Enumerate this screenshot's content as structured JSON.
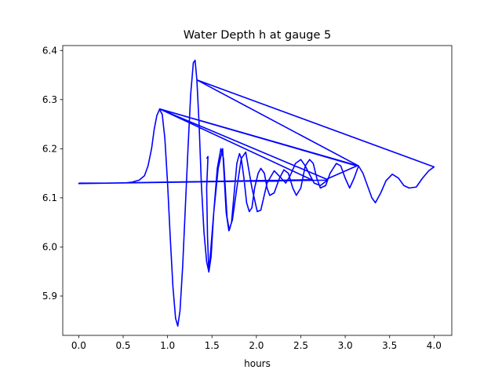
{
  "chart_data": {
    "type": "line",
    "title": "Water Depth h at gauge 5",
    "xlabel": "hours",
    "ylabel": "",
    "xlim": [
      -0.18,
      4.2
    ],
    "ylim": [
      5.82,
      6.41
    ],
    "x_ticks": [
      0.0,
      0.5,
      1.0,
      1.5,
      2.0,
      2.5,
      3.0,
      3.5,
      4.0
    ],
    "x_tick_labels": [
      "0.0",
      "0.5",
      "1.0",
      "1.5",
      "2.0",
      "2.5",
      "3.0",
      "3.5",
      "4.0"
    ],
    "y_ticks": [
      5.9,
      6.0,
      6.1,
      6.2,
      6.3,
      6.4
    ],
    "y_tick_labels": [
      "5.9",
      "6.0",
      "6.1",
      "6.2",
      "6.3",
      "6.4"
    ],
    "grid": false,
    "legend": "none",
    "color": "#0000ff",
    "series": [
      {
        "points": [
          [
            0.0,
            6.13
          ],
          [
            0.3,
            6.13
          ],
          [
            0.5,
            6.13
          ],
          [
            0.6,
            6.132
          ],
          [
            0.68,
            6.136
          ],
          [
            0.74,
            6.145
          ],
          [
            0.78,
            6.165
          ],
          [
            0.82,
            6.2
          ],
          [
            0.85,
            6.24
          ],
          [
            0.88,
            6.268
          ],
          [
            0.91,
            6.28
          ],
          [
            0.94,
            6.27
          ],
          [
            0.97,
            6.22
          ],
          [
            1.0,
            6.13
          ],
          [
            1.03,
            6.02
          ],
          [
            1.06,
            5.92
          ],
          [
            1.09,
            5.855
          ],
          [
            1.115,
            5.839
          ],
          [
            1.14,
            5.87
          ],
          [
            1.17,
            5.96
          ],
          [
            1.2,
            6.08
          ],
          [
            1.23,
            6.2
          ],
          [
            1.26,
            6.31
          ],
          [
            1.29,
            6.375
          ],
          [
            1.31,
            6.38
          ],
          [
            1.33,
            6.34
          ],
          [
            1.355,
            6.25
          ],
          [
            1.38,
            6.13
          ],
          [
            1.41,
            6.03
          ],
          [
            1.44,
            5.97
          ],
          [
            1.465,
            5.949
          ],
          [
            1.49,
            5.98
          ],
          [
            1.52,
            6.07
          ],
          [
            1.56,
            6.16
          ],
          [
            1.6,
            6.2
          ],
          [
            1.63,
            6.18
          ],
          [
            1.65,
            6.12
          ],
          [
            1.67,
            6.06
          ],
          [
            1.695,
            6.034
          ],
          [
            1.72,
            6.05
          ],
          [
            1.75,
            6.11
          ],
          [
            1.78,
            6.17
          ],
          [
            1.81,
            6.19
          ],
          [
            1.83,
            6.18
          ],
          [
            1.86,
            6.14
          ],
          [
            1.89,
            6.09
          ],
          [
            1.92,
            6.072
          ],
          [
            1.95,
            6.08
          ],
          [
            1.98,
            6.12
          ],
          [
            2.02,
            6.15
          ],
          [
            2.05,
            6.16
          ],
          [
            2.09,
            6.15
          ],
          [
            2.12,
            6.12
          ],
          [
            2.15,
            6.105
          ],
          [
            2.2,
            6.11
          ],
          [
            2.26,
            6.14
          ],
          [
            2.31,
            6.157
          ],
          [
            2.36,
            6.15
          ],
          [
            2.41,
            6.12
          ],
          [
            2.45,
            6.105
          ],
          [
            2.5,
            6.12
          ],
          [
            2.55,
            6.165
          ],
          [
            2.6,
            6.178
          ],
          [
            2.64,
            6.17
          ],
          [
            2.68,
            6.14
          ],
          [
            2.72,
            6.12
          ],
          [
            2.78,
            6.125
          ],
          [
            2.83,
            6.15
          ],
          [
            2.9,
            6.17
          ],
          [
            2.95,
            6.165
          ],
          [
            3.0,
            6.14
          ],
          [
            3.05,
            6.12
          ],
          [
            3.1,
            6.14
          ],
          [
            3.15,
            6.165
          ],
          [
            3.2,
            6.15
          ],
          [
            3.26,
            6.12
          ],
          [
            3.3,
            6.1
          ],
          [
            3.34,
            6.09
          ],
          [
            3.4,
            6.11
          ],
          [
            3.46,
            6.135
          ],
          [
            3.53,
            6.148
          ],
          [
            3.6,
            6.14
          ],
          [
            3.66,
            6.125
          ],
          [
            3.72,
            6.12
          ],
          [
            3.8,
            6.122
          ],
          [
            3.87,
            6.14
          ],
          [
            3.94,
            6.155
          ],
          [
            4.0,
            6.163
          ],
          [
            1.33,
            6.34
          ],
          [
            3.15,
            6.165
          ],
          [
            0.91,
            6.281
          ],
          [
            3.13,
            6.165
          ],
          [
            2.79,
            6.138
          ],
          [
            0.91,
            6.281
          ],
          [
            2.62,
            6.137
          ],
          [
            0.0,
            6.129
          ],
          [
            2.8,
            6.136
          ],
          [
            2.72,
            6.125
          ],
          [
            2.65,
            6.13
          ],
          [
            2.55,
            6.165
          ],
          [
            2.5,
            6.178
          ],
          [
            2.44,
            6.17
          ],
          [
            2.38,
            6.145
          ],
          [
            2.33,
            6.13
          ],
          [
            2.28,
            6.14
          ],
          [
            2.2,
            6.155
          ],
          [
            2.12,
            6.13
          ],
          [
            2.05,
            6.075
          ],
          [
            2.01,
            6.072
          ],
          [
            1.95,
            6.12
          ],
          [
            1.88,
            6.193
          ],
          [
            1.83,
            6.18
          ],
          [
            1.78,
            6.12
          ],
          [
            1.73,
            6.055
          ],
          [
            1.69,
            6.033
          ],
          [
            1.66,
            6.07
          ],
          [
            1.62,
            6.2
          ],
          [
            1.57,
            6.16
          ],
          [
            1.52,
            6.07
          ],
          [
            1.48,
            5.98
          ],
          [
            1.465,
            5.949
          ],
          [
            1.45,
            6.02
          ],
          [
            1.44,
            6.12
          ],
          [
            1.455,
            6.184
          ],
          [
            1.44,
            6.18
          ]
        ]
      }
    ]
  }
}
